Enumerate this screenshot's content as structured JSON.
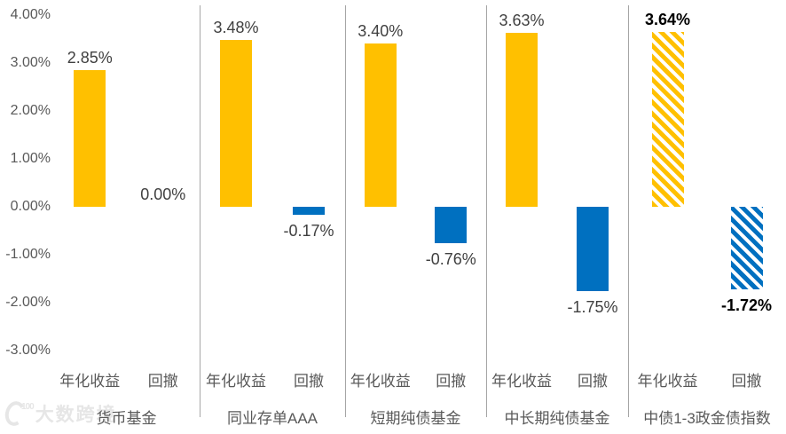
{
  "watermark": {
    "logo_number": "100",
    "text": "大数跨境"
  },
  "chart_data": {
    "type": "bar",
    "series_names": [
      "年化收益",
      "回撤"
    ],
    "y_axis": {
      "min": -3,
      "max": 4,
      "ticks": [
        {
          "value": 4,
          "label": "4.00%"
        },
        {
          "value": 3,
          "label": "3.00%"
        },
        {
          "value": 2,
          "label": "2.00%"
        },
        {
          "value": 1,
          "label": "1.00%"
        },
        {
          "value": 0,
          "label": "0.00%"
        },
        {
          "value": -1,
          "label": "-1.00%"
        },
        {
          "value": -2,
          "label": "-2.00%"
        },
        {
          "value": -3,
          "label": "-3.00%"
        }
      ]
    },
    "colors": {
      "series": [
        "#ffc000",
        "#0070c0"
      ],
      "label": "#404040",
      "bold_label": "#000000",
      "divider": "#a6a6a6"
    },
    "groups": [
      {
        "category": "货币基金",
        "hatched": false,
        "bold_labels": false,
        "bars": [
          {
            "series": "年化收益",
            "value": 2.85,
            "label": "2.85%"
          },
          {
            "series": "回撤",
            "value": 0.0,
            "label": "0.00%"
          }
        ]
      },
      {
        "category": "同业存单AAA",
        "hatched": false,
        "bold_labels": false,
        "bars": [
          {
            "series": "年化收益",
            "value": 3.48,
            "label": "3.48%"
          },
          {
            "series": "回撤",
            "value": -0.17,
            "label": "-0.17%"
          }
        ]
      },
      {
        "category": "短期纯债基金",
        "hatched": false,
        "bold_labels": false,
        "bars": [
          {
            "series": "年化收益",
            "value": 3.4,
            "label": "3.40%"
          },
          {
            "series": "回撤",
            "value": -0.76,
            "label": "-0.76%"
          }
        ]
      },
      {
        "category": "中长期纯债基金",
        "hatched": false,
        "bold_labels": false,
        "bars": [
          {
            "series": "年化收益",
            "value": 3.63,
            "label": "3.63%"
          },
          {
            "series": "回撤",
            "value": -1.75,
            "label": "-1.75%"
          }
        ]
      },
      {
        "category": "中债1-3政金债指数",
        "hatched": true,
        "bold_labels": true,
        "bars": [
          {
            "series": "年化收益",
            "value": 3.64,
            "label": "3.64%"
          },
          {
            "series": "回撤",
            "value": -1.72,
            "label": "-1.72%"
          }
        ]
      }
    ]
  }
}
